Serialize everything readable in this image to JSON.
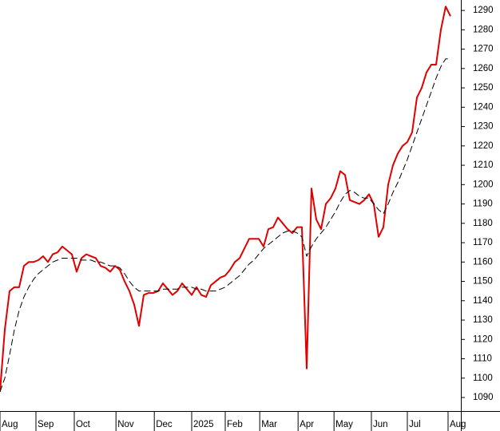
{
  "chart_data": {
    "type": "line",
    "xlim": [
      0,
      96.17
    ],
    "ylim": [
      1083,
      1295.4
    ],
    "yticks": [
      1090,
      1100,
      1110,
      1120,
      1130,
      1140,
      1150,
      1160,
      1170,
      1180,
      1190,
      1200,
      1210,
      1220,
      1230,
      1240,
      1250,
      1260,
      1270,
      1280,
      1290
    ],
    "xticks": [
      {
        "value": 0,
        "label": "Aug"
      },
      {
        "value": 7.5,
        "label": "Sep"
      },
      {
        "value": 15.5,
        "label": "Oct"
      },
      {
        "value": 24.2,
        "label": "Nov"
      },
      {
        "value": 32.2,
        "label": "Dec"
      },
      {
        "value": 40,
        "label": "2025"
      },
      {
        "value": 47,
        "label": "Feb"
      },
      {
        "value": 54.2,
        "label": "Mar"
      },
      {
        "value": 62.2,
        "label": "Apr"
      },
      {
        "value": 69.7,
        "label": "May"
      },
      {
        "value": 77.5,
        "label": "Jun"
      },
      {
        "value": 85,
        "label": "Jul"
      },
      {
        "value": 93.5,
        "label": "Aug"
      }
    ],
    "series": [
      {
        "color": "#e00000",
        "dashed": false,
        "values": [
          1093,
          1125,
          1145,
          1147,
          1147,
          1158,
          1160,
          1160,
          1161,
          1163,
          1160,
          1164,
          1165,
          1168,
          1166,
          1164,
          1155,
          1162,
          1164,
          1163,
          1162,
          1158,
          1157,
          1155,
          1158,
          1156,
          1150,
          1145,
          1138,
          1127,
          1143,
          1144,
          1144,
          1145,
          1149,
          1146,
          1143,
          1145,
          1149,
          1146,
          1143,
          1147,
          1143,
          1142,
          1148,
          1150,
          1152,
          1153,
          1156,
          1160,
          1162,
          1167,
          1172,
          1172,
          1172,
          1168,
          1177,
          1178,
          1183,
          1180,
          1177,
          1175,
          1178,
          1178,
          1105,
          1198,
          1182,
          1177,
          1190,
          1193,
          1198,
          1207,
          1205,
          1192,
          1191,
          1190,
          1192,
          1195,
          1190,
          1173,
          1178,
          1200,
          1210,
          1216,
          1220,
          1222,
          1227,
          1245,
          1250,
          1258,
          1262,
          1262,
          1280,
          1292,
          1287
        ]
      },
      {
        "color": "#000000",
        "dashed": true,
        "values": [
          1093,
          1100,
          1112,
          1125,
          1135,
          1142,
          1147,
          1151,
          1154,
          1156,
          1158,
          1160,
          1161,
          1162,
          1162,
          1162,
          1162,
          1161,
          1161,
          1161,
          1160,
          1160,
          1159,
          1158,
          1158,
          1157,
          1154,
          1150,
          1147,
          1145,
          1145,
          1145,
          1145,
          1145,
          1146,
          1146,
          1146,
          1146,
          1147,
          1147,
          1147,
          1146,
          1146,
          1145,
          1145,
          1145,
          1146,
          1147,
          1149,
          1151,
          1153,
          1156,
          1159,
          1161,
          1164,
          1167,
          1169,
          1171,
          1173,
          1175,
          1176,
          1176,
          1175,
          1173,
          1163,
          1168,
          1172,
          1175,
          1178,
          1182,
          1186,
          1191,
          1195,
          1197,
          1196,
          1194,
          1193,
          1193,
          1190,
          1187,
          1185,
          1190,
          1196,
          1201,
          1207,
          1213,
          1220,
          1227,
          1234,
          1241,
          1248,
          1255,
          1261,
          1265,
          1265
        ]
      }
    ]
  }
}
